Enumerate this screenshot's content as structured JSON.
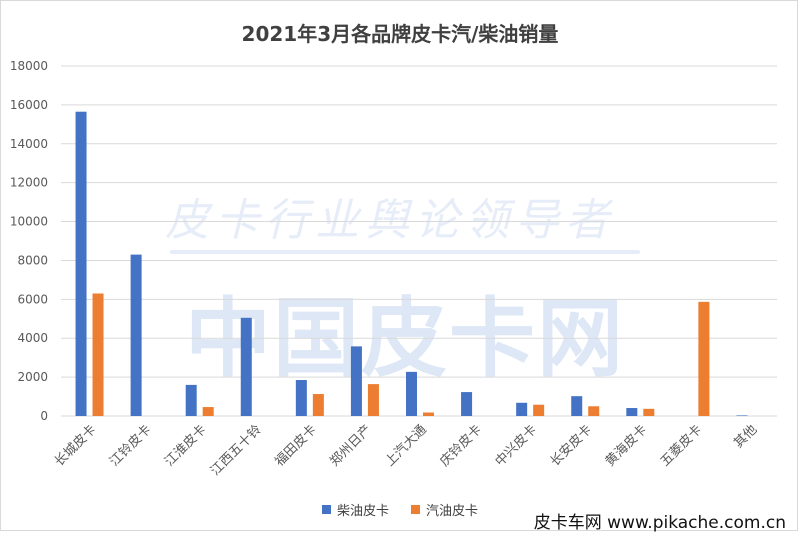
{
  "chart_data": {
    "type": "bar",
    "title": "2021年3月各品牌皮卡汽/柴油销量",
    "categories": [
      "长城皮卡",
      "江铃皮卡",
      "江淮皮卡",
      "江西五十铃",
      "福田皮卡",
      "郑州日产",
      "上汽大通",
      "庆铃皮卡",
      "中兴皮卡",
      "长安皮卡",
      "黄海皮卡",
      "五菱皮卡",
      "其他"
    ],
    "series": [
      {
        "name": "柴油皮卡",
        "color": "#4472c4",
        "values": [
          15650,
          8300,
          1600,
          5050,
          1850,
          3580,
          2270,
          1230,
          680,
          1020,
          410,
          0,
          30
        ]
      },
      {
        "name": "汽油皮卡",
        "color": "#ed7d31",
        "values": [
          6300,
          0,
          460,
          0,
          1130,
          1640,
          180,
          0,
          580,
          500,
          370,
          5870,
          0
        ]
      }
    ],
    "ylim": [
      0,
      18000
    ],
    "yticks": [
      0,
      2000,
      4000,
      6000,
      8000,
      10000,
      12000,
      14000,
      16000,
      18000
    ],
    "grid": true,
    "legend_position": "bottom"
  },
  "watermark": {
    "line1": "皮卡行业舆论领导者",
    "line2": "中国皮卡网"
  },
  "footer": "皮卡车网 www.pikache.com.cn"
}
